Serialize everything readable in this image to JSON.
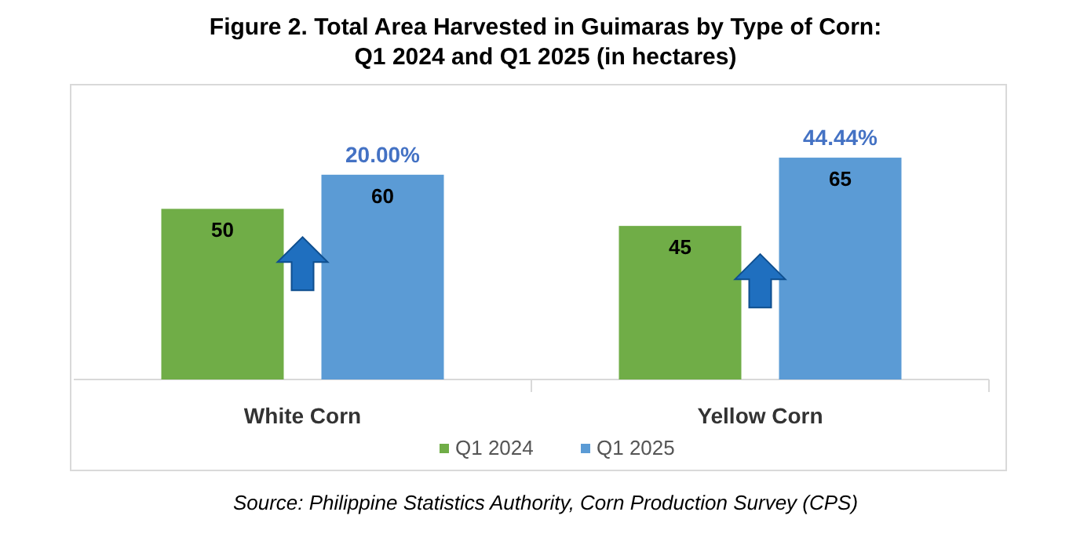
{
  "chart_data": {
    "type": "bar",
    "title": "Figure 2. Total Area Harvested in Guimaras by Type of Corn:\nQ1 2024 and Q1 2025 (in hectares)",
    "categories": [
      "White Corn",
      "Yellow Corn"
    ],
    "series": [
      {
        "name": "Q1 2024",
        "color": "#70ad47",
        "values": [
          50,
          45
        ]
      },
      {
        "name": "Q1 2025",
        "color": "#5b9bd5",
        "values": [
          60,
          65
        ]
      }
    ],
    "data_labels": true,
    "legend": "bottom",
    "tick_labels": "x",
    "annotations": [
      "20.00%",
      "44.44%",
      "Source: Philippine Statistics Authority, Corn Production Survey (CPS)"
    ]
  }
}
